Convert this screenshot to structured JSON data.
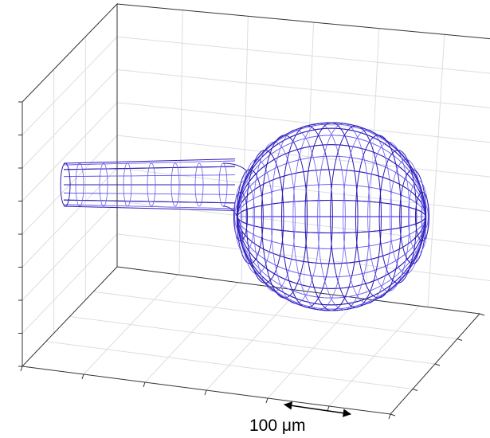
{
  "scale_bar": {
    "label": "100 μm"
  }
}
